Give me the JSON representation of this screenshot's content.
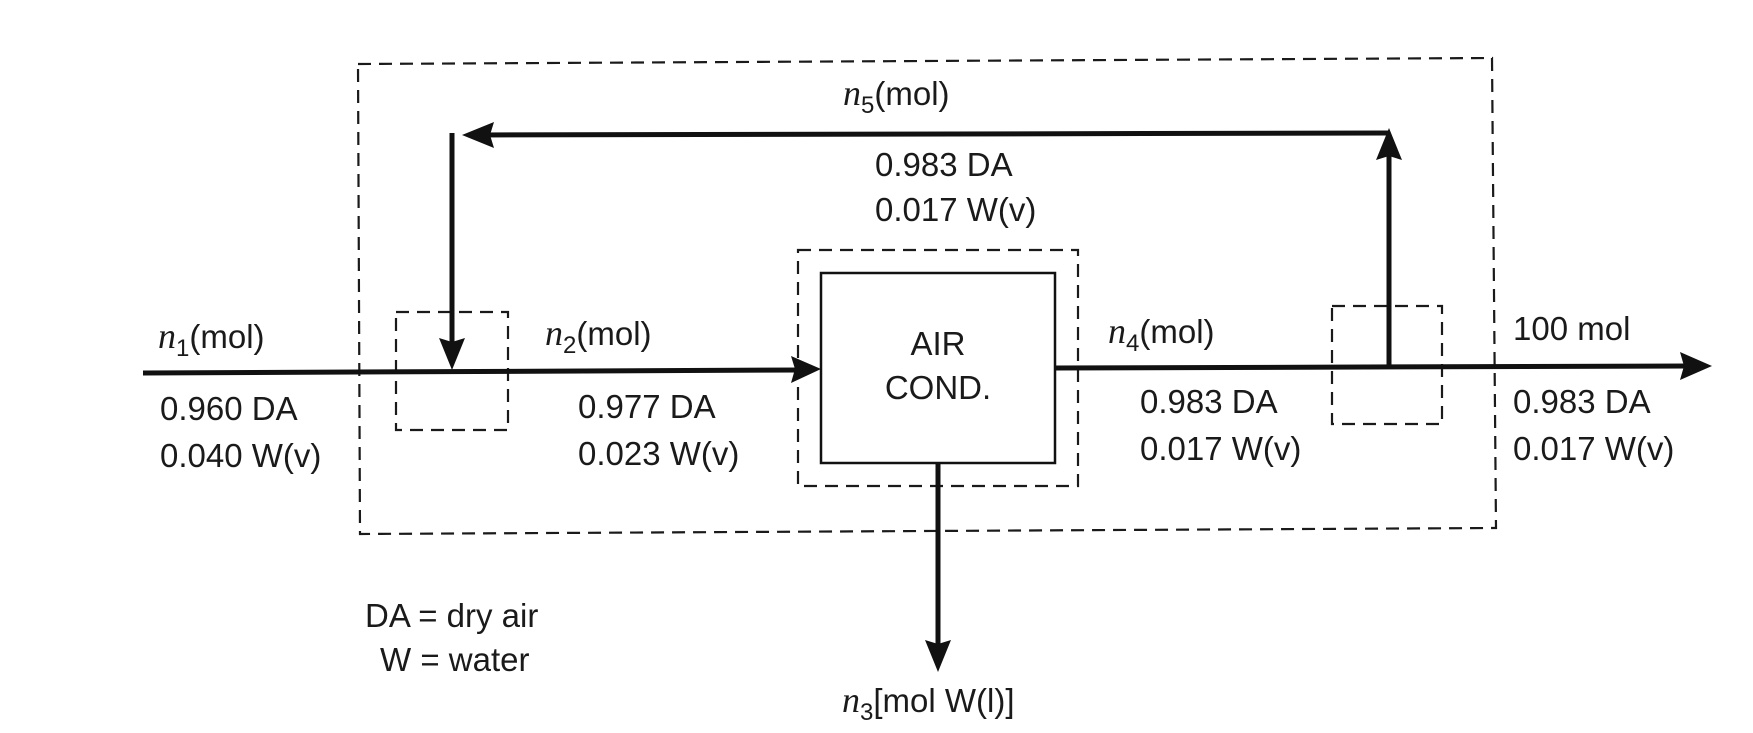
{
  "unit": {
    "line1": "AIR",
    "line2": "COND."
  },
  "streams": {
    "n1": {
      "var": "n",
      "sub": "1",
      "unit": "(mol)",
      "comp1": "0.960 DA",
      "comp2": "0.040 W(v)"
    },
    "n2": {
      "var": "n",
      "sub": "2",
      "unit": "(mol)",
      "comp1": "0.977 DA",
      "comp2": "0.023 W(v)"
    },
    "n3": {
      "var": "n",
      "sub": "3",
      "unit": "[mol W(l)]"
    },
    "n4": {
      "var": "n",
      "sub": "4",
      "unit": "(mol)",
      "comp1": "0.983 DA",
      "comp2": "0.017 W(v)"
    },
    "n5": {
      "var": "n",
      "sub": "5",
      "unit": "(mol)",
      "comp1": "0.983 DA",
      "comp2": "0.017 W(v)"
    },
    "product": {
      "label": "100 mol",
      "comp1": "0.983 DA",
      "comp2": "0.017 W(v)"
    }
  },
  "legend": {
    "line1": "DA = dry air",
    "line2": "W = water"
  }
}
